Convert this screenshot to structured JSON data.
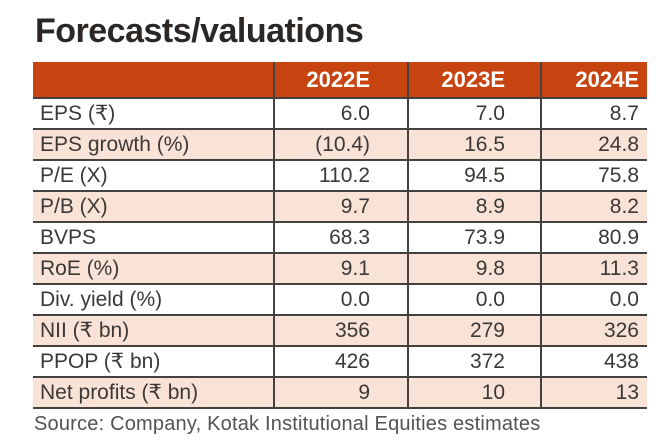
{
  "title": "Forecasts/valuations",
  "table": {
    "columns": [
      "",
      "2022E",
      "2023E",
      "2024E"
    ],
    "rows": [
      {
        "label": "EPS (₹)",
        "values": [
          "6.0",
          "7.0",
          "8.7"
        ]
      },
      {
        "label": "EPS growth (%)",
        "values": [
          "(10.4)",
          "16.5",
          "24.8"
        ]
      },
      {
        "label": "P/E (X)",
        "values": [
          "110.2",
          "94.5",
          "75.8"
        ]
      },
      {
        "label": "P/B (X)",
        "values": [
          "9.7",
          "8.9",
          "8.2"
        ]
      },
      {
        "label": "BVPS",
        "values": [
          "68.3",
          "73.9",
          "80.9"
        ]
      },
      {
        "label": "RoE (%)",
        "values": [
          "9.1",
          "9.8",
          "11.3"
        ]
      },
      {
        "label": "Div. yield (%)",
        "values": [
          "0.0",
          "0.0",
          "0.0"
        ]
      },
      {
        "label": "NII (₹ bn)",
        "values": [
          "356",
          "279",
          "326"
        ]
      },
      {
        "label": "PPOP (₹ bn)",
        "values": [
          "426",
          "372",
          "438"
        ]
      },
      {
        "label": "Net profits (₹ bn)",
        "values": [
          "9",
          "10",
          "13"
        ]
      }
    ]
  },
  "source": "Source: Company, Kotak Institutional Equities estimates",
  "colors": {
    "header_bg": "#C7430F",
    "alt_row_bg": "#F9E3D6",
    "border": "#454140",
    "text": "#3C3835",
    "title": "#2B2724",
    "source_text": "#555250"
  }
}
